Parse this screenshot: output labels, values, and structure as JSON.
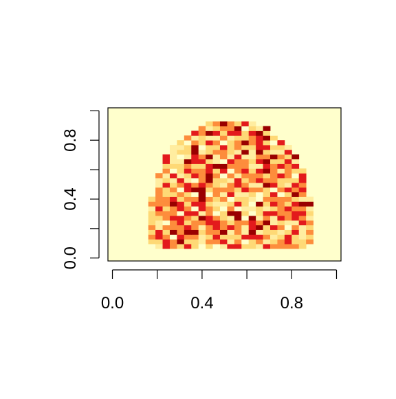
{
  "chart_data": {
    "type": "heatmap",
    "title": "",
    "xlabel": "",
    "ylabel": "",
    "xlim": [
      -0.02,
      1.02
    ],
    "ylim": [
      -0.02,
      1.02
    ],
    "x_ticks": [
      0.0,
      0.2,
      0.4,
      0.6,
      0.8,
      1.0
    ],
    "x_tick_labels": [
      "0.0",
      "",
      "0.4",
      "",
      "0.8",
      ""
    ],
    "y_ticks": [
      0.0,
      0.2,
      0.4,
      0.6,
      0.8,
      1.0
    ],
    "y_tick_labels": [
      "0.0",
      "",
      "0.4",
      "",
      "0.8",
      ""
    ],
    "grid": false,
    "legend": "none",
    "background_color": "#FFFFCC",
    "palette": [
      "#FFFFCC",
      "#FFEDA0",
      "#FED976",
      "#FD8D3C",
      "#E31A1C",
      "#990000"
    ],
    "cell_size": [
      0.032,
      0.032
    ],
    "shape_center": [
      0.53,
      0.42
    ],
    "shape_radii": [
      0.34,
      0.52
    ],
    "grid_cols": 32,
    "grid_rows": 32,
    "mask_rows": [
      "................................",
      "................................",
      "................................",
      "......................FFF.......",
      "...................FFFFFFFF.....",
      ".................FFFFFFFFFFFF...",
      "...............FFFFFFFFFFFFFFF..",
      "..............FFFFFFFFFFFFFFFFF.",
      ".............FFFFFFFFFFFFFFFFFFF",
      ".............FFFFFFFFFFFFFFFFFFF",
      "............FFFFFFFFFFFFFFFFFFFF",
      "............FFFFFFFFFFFFFFFFFFFF",
      "...........FFFFFFFFFFFFFFFFFFFFF",
      "...........FFFFFFFFFFFFFFFFFFFFF",
      "...........FFFFFFFFFFFFFFFFFFFFF",
      "..........FFFFFFFFFFFFFFFFFFFFFF",
      "..........FFFFFFFFFFFFFFFFFFFFFF",
      "..........FFFFFFFFFFFFFFFFFFFFFF",
      "..........FFFFFFFFFFFFFFFFFFFFFF",
      "..........FFFFFFFFFFFFFFFFFFFFFF",
      "..........FFFFFFFFFFFFFFFFFFFFFF",
      "...........FFFFFFFFFFFFFFFFFFFFF",
      "...........FFFFFFFFFFFFFFFFFFFFF",
      "............FFFFFFFFFFFFFFFFFFFF",
      ".............FFFFFFFFFFFFFFFFFF.",
      "................................",
      "................................",
      "................................",
      "................................",
      "................................",
      "................................",
      "................................"
    ]
  }
}
